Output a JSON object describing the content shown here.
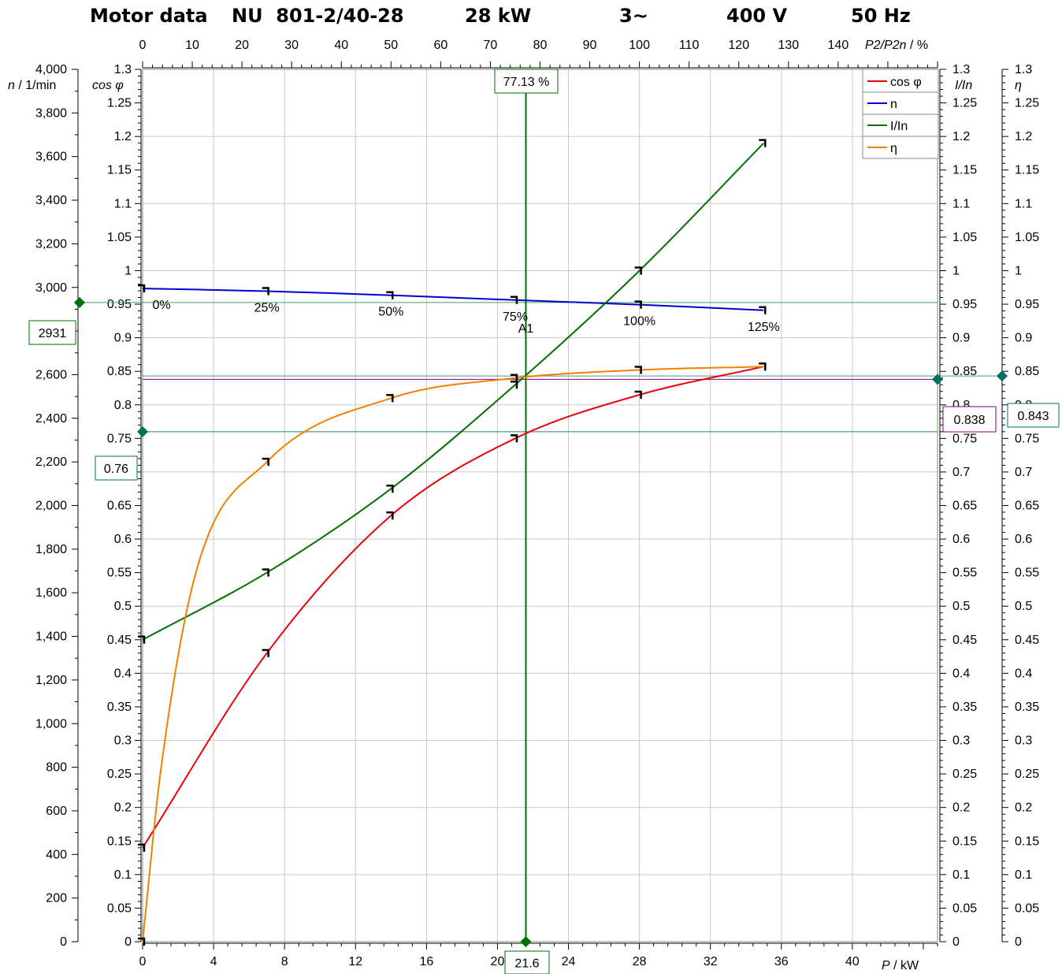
{
  "title": {
    "label": "Motor data",
    "type": "NU  801-2/40-28",
    "power": "28 kW",
    "phase": "3~",
    "voltage": "400 V",
    "frequency": "50 Hz"
  },
  "axis_titles": {
    "n": "n",
    "n_unit": " / 1/min",
    "cos": "cos φ",
    "i": "I/In",
    "eta": "η",
    "p": "P",
    "p_unit": "  / kW",
    "pct": "P2/P2n",
    "pct_unit": " / %"
  },
  "colors": {
    "cos": "#e8000b",
    "n": "#0000d0",
    "i": "#007000",
    "eta": "#f08000",
    "cursor": "#007000",
    "marker_teal": "#007060",
    "marker_purple": "#800080"
  },
  "legend": [
    {
      "label": "cos φ",
      "color": "#e8000b"
    },
    {
      "label": "n",
      "color": "#0000d0"
    },
    {
      "label": "I/In",
      "color": "#007000"
    },
    {
      "label": "η",
      "color": "#f08000"
    }
  ],
  "cursor": {
    "pct_label": "77.13 %",
    "p_label": "21.6",
    "point_label": "A1"
  },
  "markers": {
    "n_label": "2931",
    "cos_label": "0.76",
    "eta_label": "0.838",
    "i_label": "0.843"
  },
  "load_labels": [
    "0%",
    "25%",
    "50%",
    "75%",
    "100%",
    "125%"
  ],
  "chart_data": {
    "type": "line",
    "title": "Motor data NU 801-2/40-28 28 kW 3~ 400 V 50 Hz",
    "xlabel": "P / kW",
    "x2label": "P2/P2n / %",
    "xlim": [
      0,
      44.8
    ],
    "x2lim": [
      0,
      160
    ],
    "y_n": {
      "label": "n / 1/min",
      "lim": [
        0,
        4000
      ],
      "ticks": [
        0,
        200,
        400,
        600,
        800,
        1000,
        1200,
        1400,
        1600,
        1800,
        2000,
        2200,
        2400,
        2600,
        2800,
        3000,
        3200,
        3400,
        3600,
        3800,
        4000
      ]
    },
    "y_cos": {
      "label": "cos φ",
      "lim": [
        0,
        1.3
      ]
    },
    "y_i": {
      "label": "I/In",
      "lim": [
        0,
        1.3
      ]
    },
    "y_eta": {
      "label": "η",
      "lim": [
        0,
        1.3
      ]
    },
    "x_ticks": [
      0,
      4,
      8,
      12,
      16,
      20,
      24,
      28,
      32,
      36,
      40
    ],
    "x2_ticks": [
      0,
      10,
      20,
      30,
      40,
      50,
      60,
      70,
      80,
      90,
      100,
      110,
      120,
      130,
      140
    ],
    "y_ticks_ratio": [
      0,
      0.05,
      0.1,
      0.15,
      0.2,
      0.25,
      0.3,
      0.35,
      0.4,
      0.45,
      0.5,
      0.55,
      0.6,
      0.65,
      0.7,
      0.75,
      0.8,
      0.85,
      0.9,
      0.95,
      1,
      1.05,
      1.1,
      1.15,
      1.2,
      1.25,
      1.3
    ],
    "load_points_kW": [
      0,
      7,
      14,
      21,
      28,
      35
    ],
    "series": [
      {
        "name": "cos φ",
        "axis": "cos",
        "x": [
          0,
          7,
          14,
          21,
          28,
          35
        ],
        "y": [
          0.14,
          0.43,
          0.635,
          0.75,
          0.815,
          0.857
        ]
      },
      {
        "name": "n",
        "axis": "n",
        "x": [
          0,
          7,
          14,
          21,
          28,
          35
        ],
        "y": [
          2995,
          2983,
          2964,
          2942,
          2921,
          2895
        ]
      },
      {
        "name": "I/In",
        "axis": "i",
        "x": [
          0,
          7,
          14,
          21,
          28,
          35
        ],
        "y": [
          0.45,
          0.55,
          0.675,
          0.83,
          1.0,
          1.19
        ]
      },
      {
        "name": "η",
        "axis": "eta",
        "x": [
          0,
          1,
          3,
          7,
          14,
          21,
          28,
          35
        ],
        "y": [
          0,
          0.25,
          0.55,
          0.715,
          0.81,
          0.84,
          0.852,
          0.857
        ]
      }
    ],
    "cursor_x_kW": 21.6,
    "cursor_pct": 77.13,
    "cursor_values": {
      "n": 2931,
      "cos": 0.76,
      "eta": 0.838,
      "i": 0.843
    },
    "grid": true,
    "legend_position": "top-right"
  }
}
